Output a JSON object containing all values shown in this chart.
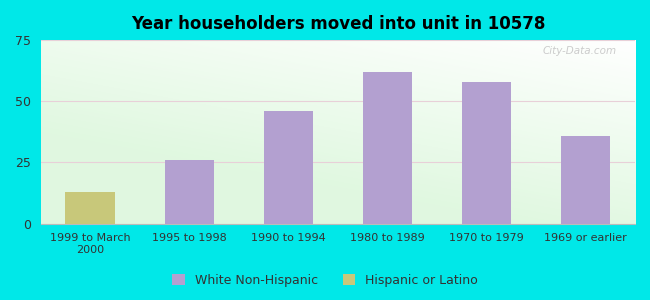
{
  "title": "Year householders moved into unit in 10578",
  "categories": [
    "1999 to March\n2000",
    "1995 to 1998",
    "1990 to 1994",
    "1980 to 1989",
    "1970 to 1979",
    "1969 or earlier"
  ],
  "white_non_hispanic": [
    0,
    26,
    46,
    62,
    58,
    36
  ],
  "hispanic_or_latino": [
    13,
    0,
    0,
    0,
    0,
    0
  ],
  "bar_color_white": "#b3a0d0",
  "bar_color_hispanic": "#c8c87a",
  "background_outer": "#00e8e8",
  "ylim": [
    0,
    75
  ],
  "yticks": [
    0,
    25,
    50,
    75
  ],
  "bar_width": 0.5,
  "legend_white_label": "White Non-Hispanic",
  "legend_hispanic_label": "Hispanic or Latino",
  "watermark": "City-Data.com"
}
